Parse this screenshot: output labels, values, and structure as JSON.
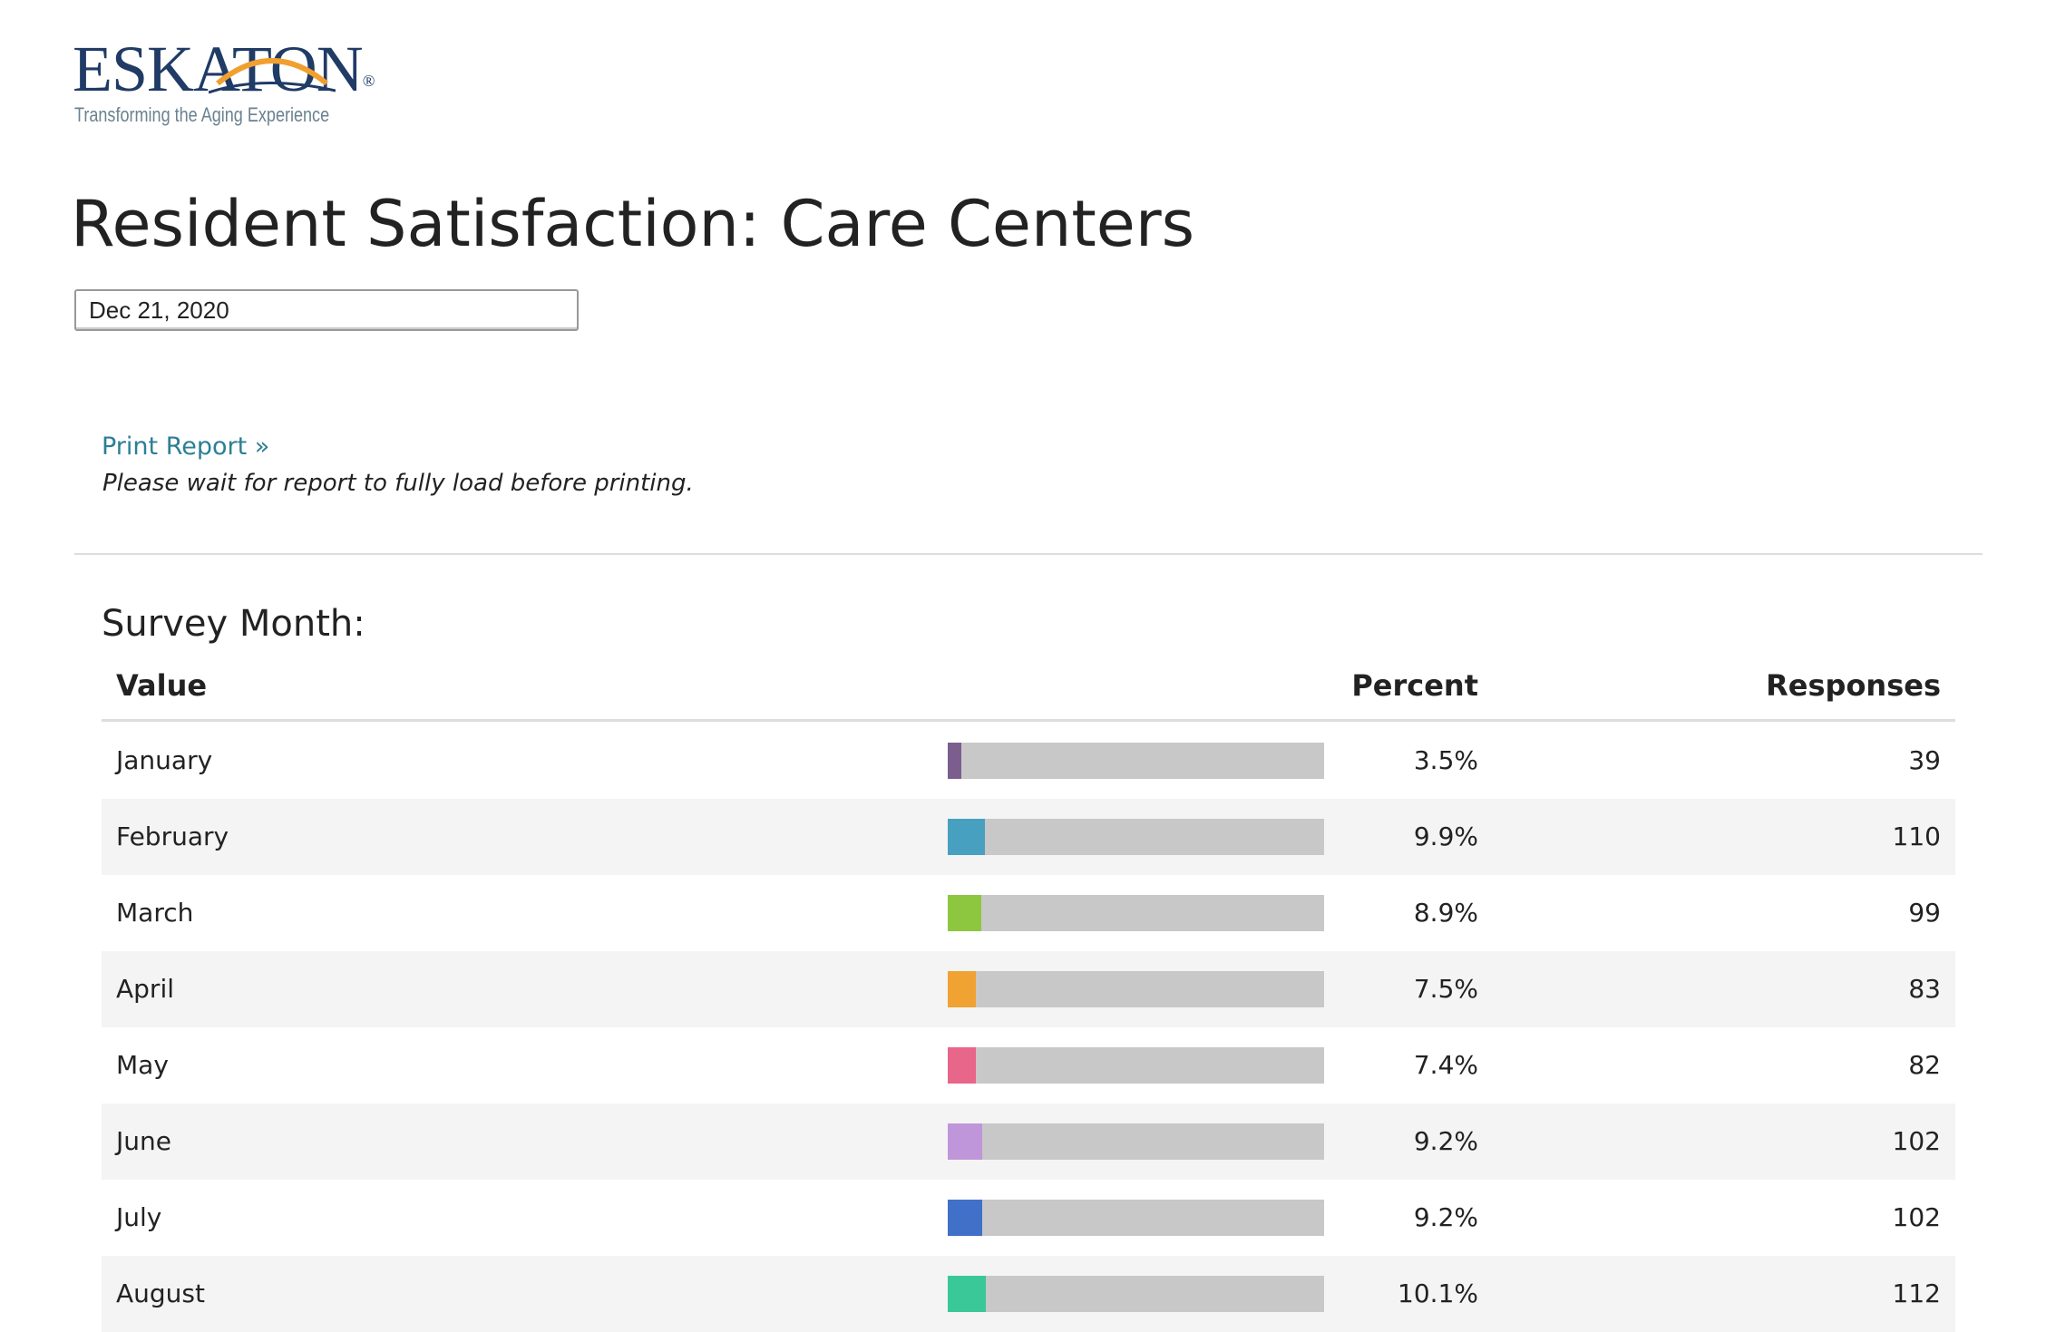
{
  "logo": {
    "name": "ESKATON",
    "mark": "®",
    "tagline": "Transforming the Aging Experience"
  },
  "header": {
    "title": "Resident Satisfaction: Care Centers",
    "date": "Dec 21, 2020"
  },
  "print": {
    "link": "Print Report »",
    "note": "Please wait for report to fully load before printing."
  },
  "table": {
    "title": "Survey Month:",
    "columns": [
      "Value",
      "Percent",
      "Responses"
    ],
    "rows": [
      {
        "value": "January",
        "percent": 3.5,
        "percent_label": "3.5%",
        "responses": 39,
        "color": "#7b5e8e"
      },
      {
        "value": "February",
        "percent": 9.9,
        "percent_label": "9.9%",
        "responses": 110,
        "color": "#48a0c0"
      },
      {
        "value": "March",
        "percent": 8.9,
        "percent_label": "8.9%",
        "responses": 99,
        "color": "#8dc63f"
      },
      {
        "value": "April",
        "percent": 7.5,
        "percent_label": "7.5%",
        "responses": 83,
        "color": "#f0a232"
      },
      {
        "value": "May",
        "percent": 7.4,
        "percent_label": "7.4%",
        "responses": 82,
        "color": "#e8668a"
      },
      {
        "value": "June",
        "percent": 9.2,
        "percent_label": "9.2%",
        "responses": 102,
        "color": "#c096da"
      },
      {
        "value": "July",
        "percent": 9.2,
        "percent_label": "9.2%",
        "responses": 102,
        "color": "#4070c8"
      },
      {
        "value": "August",
        "percent": 10.1,
        "percent_label": "10.1%",
        "responses": 112,
        "color": "#3ac898"
      }
    ]
  }
}
